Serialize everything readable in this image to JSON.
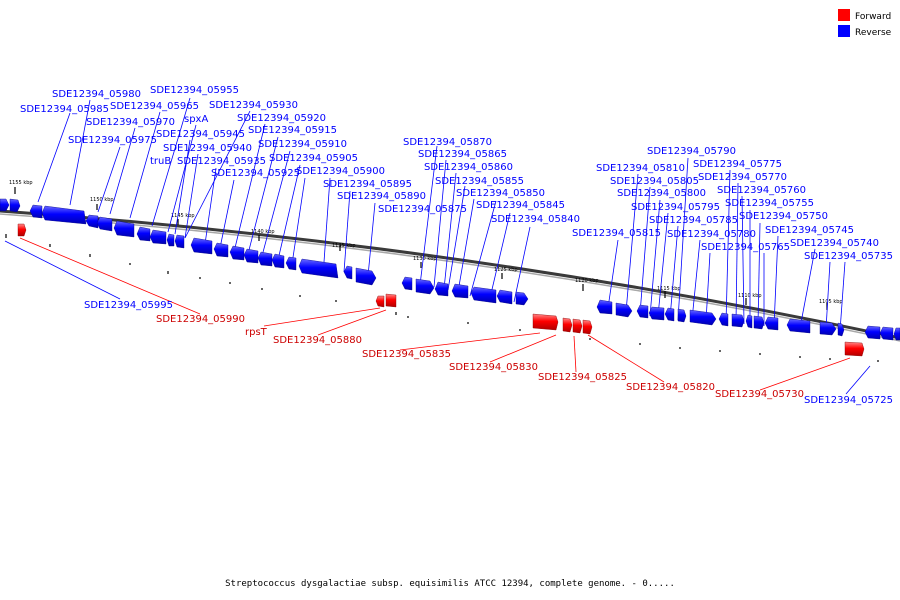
{
  "legend": [
    {
      "label": "Forward",
      "color": "#ff0000"
    },
    {
      "label": "Reverse",
      "color": "#0000ff"
    }
  ],
  "caption": "Streptococcus dysgalactiae subsp. equisimilis ATCC 12394, complete genome. - 0.....",
  "ticks": [
    "1155 kbp",
    "1150 kbp",
    "1145 kbp",
    "1140 kbp",
    "1135 kbp",
    "1130 kbp",
    "1125 kbp",
    "1120 kbp",
    "1115 kbp",
    "1110 kbp",
    "1105 kbp"
  ],
  "labels": {
    "SDE12394_05980": "SDE12394_05980",
    "SDE12394_05985": "SDE12394_05985",
    "SDE12394_05975": "SDE12394_05975",
    "SDE12394_05970": "SDE12394_05970",
    "SDE12394_05965": "SDE12394_05965",
    "SDE12394_05955": "SDE12394_05955",
    "spxA": "spxA",
    "SDE12394_05945": "SDE12394_05945",
    "SDE12394_05940": "SDE12394_05940",
    "truB": "truB",
    "SDE12394_05935": "SDE12394_05935",
    "SDE12394_05925": "SDE12394_05925",
    "SDE12394_05930": "SDE12394_05930",
    "SDE12394_05920": "SDE12394_05920",
    "SDE12394_05915": "SDE12394_05915",
    "SDE12394_05910": "SDE12394_05910",
    "SDE12394_05905": "SDE12394_05905",
    "SDE12394_05900": "SDE12394_05900",
    "SDE12394_05895": "SDE12394_05895",
    "SDE12394_05890": "SDE12394_05890",
    "SDE12394_05875": "SDE12394_05875",
    "SDE12394_05870": "SDE12394_05870",
    "SDE12394_05865": "SDE12394_05865",
    "SDE12394_05860": "SDE12394_05860",
    "SDE12394_05855": "SDE12394_05855",
    "SDE12394_05850": "SDE12394_05850",
    "SDE12394_05845": "SDE12394_05845",
    "SDE12394_05840": "SDE12394_05840",
    "SDE12394_05790": "SDE12394_05790",
    "SDE12394_05810": "SDE12394_05810",
    "SDE12394_05775": "SDE12394_05775",
    "SDE12394_05805": "SDE12394_05805",
    "SDE12394_05770": "SDE12394_05770",
    "SDE12394_05800": "SDE12394_05800",
    "SDE12394_05760": "SDE12394_05760",
    "SDE12394_05795": "SDE12394_05795",
    "SDE12394_05755": "SDE12394_05755",
    "SDE12394_05785": "SDE12394_05785",
    "SDE12394_05750": "SDE12394_05750",
    "SDE12394_05815": "SDE12394_05815",
    "SDE12394_05780": "SDE12394_05780",
    "SDE12394_05745": "SDE12394_05745",
    "SDE12394_05765": "SDE12394_05765",
    "SDE12394_05740": "SDE12394_05740",
    "SDE12394_05735": "SDE12394_05735",
    "SDE12394_05995": "SDE12394_05995",
    "SDE12394_05990": "SDE12394_05990",
    "rpsT": "rpsT",
    "SDE12394_05880": "SDE12394_05880",
    "SDE12394_05835": "SDE12394_05835",
    "SDE12394_05830": "SDE12394_05830",
    "SDE12394_05825": "SDE12394_05825",
    "SDE12394_05820": "SDE12394_05820",
    "SDE12394_05730": "SDE12394_05730",
    "SDE12394_05725": "SDE12394_05725"
  }
}
